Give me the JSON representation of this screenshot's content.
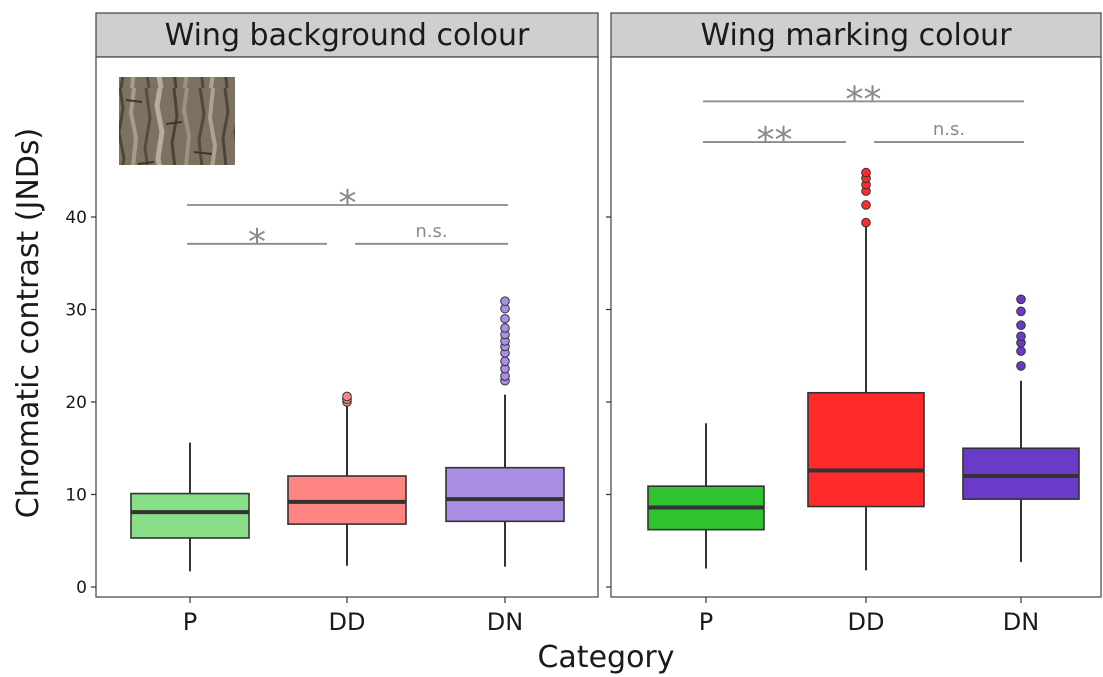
{
  "chart_data": {
    "type": "box",
    "xlabel": "Category",
    "ylabel": "Chromatic contrast (JNDs)",
    "ylim": [
      0,
      45
    ],
    "yticks": [
      0,
      10,
      20,
      30,
      40
    ],
    "grid": false,
    "colors": {
      "left": [
        "#88df88",
        "#ff8585",
        "#a98ee3"
      ],
      "right": [
        "#2fc42f",
        "#ff2a2a",
        "#6a3bc9"
      ]
    },
    "panels": [
      {
        "title": "Wing background colour",
        "has_texture_image": true,
        "categories": [
          "P",
          "DD",
          "DN"
        ],
        "boxes": [
          {
            "category": "P",
            "whisker_low": 1.7,
            "q1": 5.3,
            "median": 8.1,
            "q3": 10.1,
            "whisker_high": 15.6,
            "outliers": []
          },
          {
            "category": "DD",
            "whisker_low": 2.3,
            "q1": 6.8,
            "median": 9.2,
            "q3": 12.0,
            "whisker_high": 19.8,
            "outliers": [
              20.0,
              20.3,
              20.6
            ]
          },
          {
            "category": "DN",
            "whisker_low": 2.2,
            "q1": 7.1,
            "median": 9.5,
            "q3": 12.9,
            "whisker_high": 20.8,
            "outliers": [
              22.3,
              22.8,
              23.6,
              24.4,
              25.3,
              26.0,
              26.6,
              27.3,
              28.0,
              29.0,
              30.1,
              30.9
            ]
          }
        ],
        "significance": [
          {
            "label": "*",
            "from": "P",
            "to": "DN",
            "y": 41.3
          },
          {
            "label": "*",
            "from": "P",
            "to": "DD",
            "y": 37.1
          },
          {
            "label": "n.s.",
            "from": "DD",
            "to": "DN",
            "y": 37.1
          }
        ]
      },
      {
        "title": "Wing marking colour",
        "has_texture_image": false,
        "categories": [
          "P",
          "DD",
          "DN"
        ],
        "boxes": [
          {
            "category": "P",
            "whisker_low": 2.0,
            "q1": 6.2,
            "median": 8.6,
            "q3": 10.9,
            "whisker_high": 17.7,
            "outliers": []
          },
          {
            "category": "DD",
            "whisker_low": 1.8,
            "q1": 8.7,
            "median": 12.6,
            "q3": 21.0,
            "whisker_high": 39.0,
            "outliers": [
              39.4,
              41.3,
              42.8,
              43.5,
              44.2,
              44.8
            ]
          },
          {
            "category": "DN",
            "whisker_low": 2.7,
            "q1": 9.5,
            "median": 12.0,
            "q3": 15.0,
            "whisker_high": 22.3,
            "outliers": [
              23.9,
              25.5,
              26.4,
              27.1,
              28.3,
              29.8,
              31.1
            ]
          }
        ],
        "significance": [
          {
            "label": "**",
            "from": "P",
            "to": "DN",
            "y": 52.5
          },
          {
            "label": "**",
            "from": "P",
            "to": "DD",
            "y": 48.1
          },
          {
            "label": "n.s.",
            "from": "DD",
            "to": "DN",
            "y": 48.1
          }
        ]
      }
    ]
  }
}
